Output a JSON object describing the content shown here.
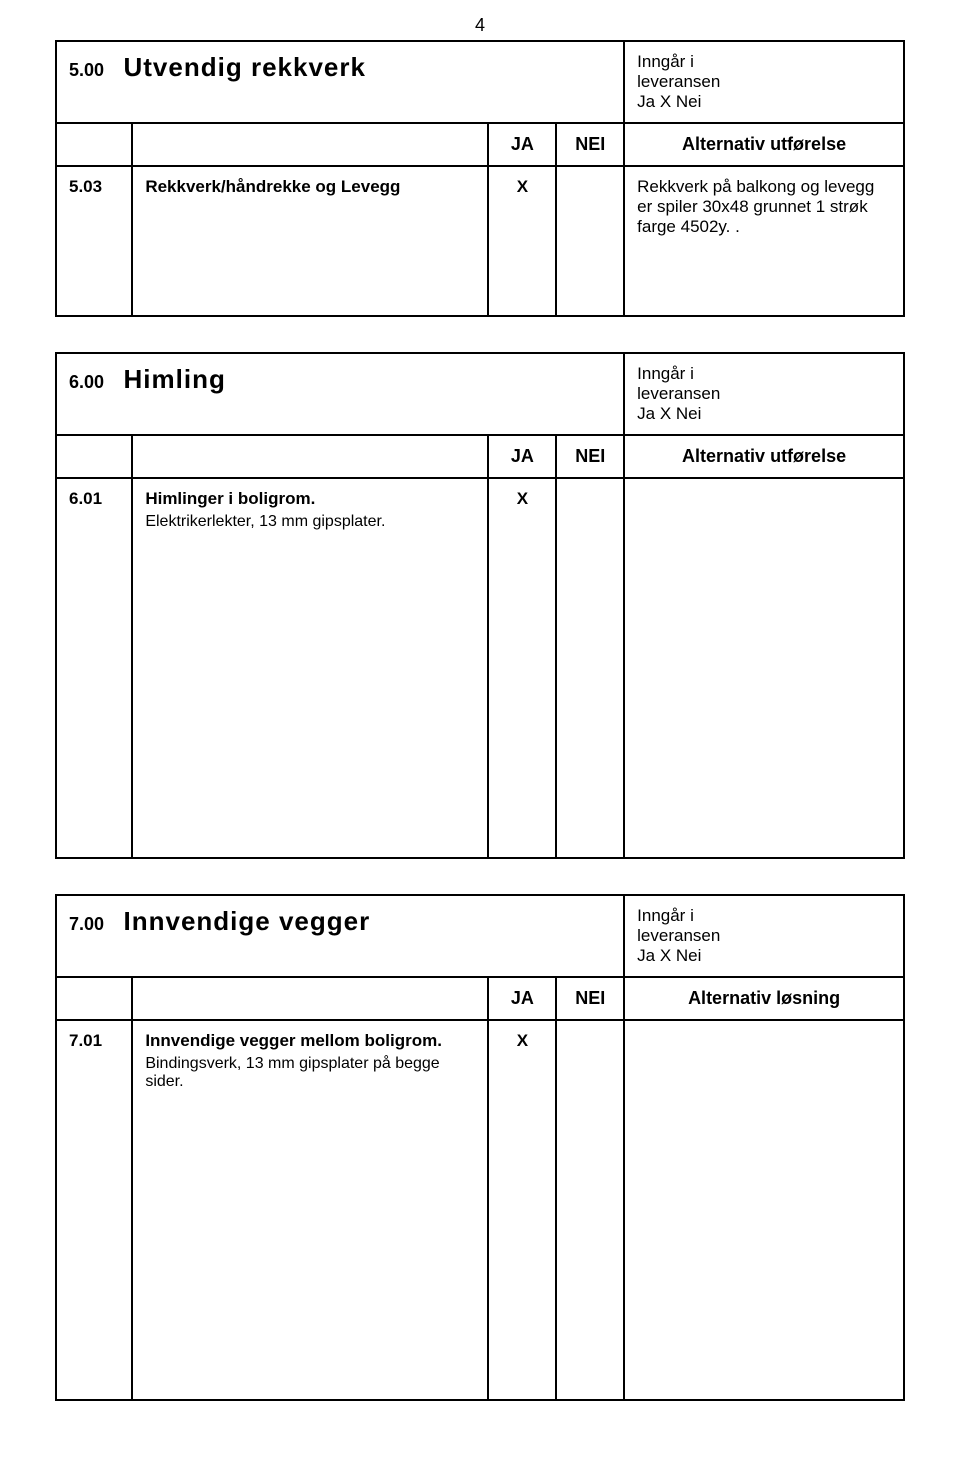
{
  "page_number": "4",
  "sections": {
    "s500": {
      "num": "5.00",
      "title": "Utvendig rekkverk",
      "inngar_label": "Inngår i",
      "leveransen_label": "leveransen",
      "ja_nei_label": "Ja  X  Nei",
      "header_ja": "JA",
      "header_nei": "NEI",
      "header_alt": "Alternativ utførelse",
      "row": {
        "num": "5.03",
        "desc": "Rekkverk/håndrekke og  Levegg",
        "ja": "X",
        "nei": "",
        "alt": "Rekkverk på balkong og levegg er spiler 30x48  grunnet 1 strøk farge 4502y.     ."
      }
    },
    "s600": {
      "num": "6.00",
      "title": "Himling",
      "inngar_label": "Inngår i",
      "leveransen_label": "leveransen",
      "ja_nei_label": "Ja  X  Nei",
      "header_ja": "JA",
      "header_nei": "NEI",
      "header_alt": "Alternativ utførelse",
      "row": {
        "num": "6.01",
        "desc": "Himlinger  i boligrom.",
        "desc_sub": "Elektrikerlekter, 13 mm gipsplater.",
        "ja": "X",
        "nei": "",
        "alt": ""
      }
    },
    "s700": {
      "num": "7.00",
      "title": "Innvendige vegger",
      "inngar_label": "Inngår i",
      "leveransen_label": "leveransen",
      "ja_nei_label": "Ja  X  Nei",
      "header_ja": "JA",
      "header_nei": "NEI",
      "header_alt": "Alternativ løsning",
      "row": {
        "num": "7.01",
        "desc": "Innvendige vegger mellom boligrom.",
        "desc_sub": "Bindingsverk, 13 mm gipsplater på begge sider.",
        "ja": "X",
        "nei": "",
        "alt": ""
      }
    }
  }
}
